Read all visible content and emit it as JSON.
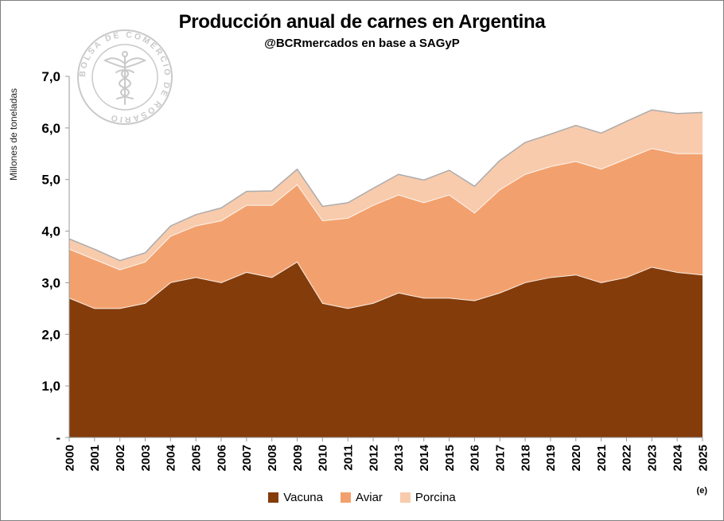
{
  "watermark": {
    "label": "BOLSA DE COMERCIO DE ROSARIO",
    "icon": "caduceus"
  },
  "chart_data": {
    "type": "area",
    "stacked": true,
    "title": "Producción anual de carnes en Argentina",
    "subtitle": "@BCRmercados en base a SAGyP",
    "ylabel": "Millones de toneladas",
    "xlabel": "",
    "ylim": [
      0,
      7
    ],
    "yticks": [
      "7,0",
      "6,0",
      "5,0",
      "4,0",
      "3,0",
      "2,0",
      "1,0",
      "-"
    ],
    "grid": false,
    "legend_position": "bottom",
    "note": "(e)",
    "x": [
      2000,
      2001,
      2002,
      2003,
      2004,
      2005,
      2006,
      2007,
      2008,
      2009,
      2010,
      2011,
      2012,
      2013,
      2014,
      2015,
      2016,
      2017,
      2018,
      2019,
      2020,
      2021,
      2022,
      2023,
      2024,
      2025
    ],
    "series": [
      {
        "name": "Vacuna",
        "color": "#843C0B",
        "values": [
          2.7,
          2.5,
          2.5,
          2.6,
          3.0,
          3.1,
          3.0,
          3.2,
          3.1,
          3.4,
          2.6,
          2.5,
          2.6,
          2.8,
          2.7,
          2.7,
          2.65,
          2.8,
          3.0,
          3.1,
          3.15,
          3.0,
          3.1,
          3.3,
          3.2,
          3.15
        ]
      },
      {
        "name": "Aviar",
        "color": "#F2A16E",
        "values": [
          0.95,
          0.95,
          0.75,
          0.8,
          0.9,
          1.0,
          1.2,
          1.3,
          1.4,
          1.5,
          1.6,
          1.75,
          1.9,
          1.9,
          1.85,
          2.0,
          1.7,
          2.0,
          2.1,
          2.15,
          2.2,
          2.2,
          2.3,
          2.3,
          2.3,
          2.35
        ]
      },
      {
        "name": "Porcina",
        "color": "#F8CBAD",
        "values": [
          0.2,
          0.2,
          0.18,
          0.18,
          0.2,
          0.22,
          0.25,
          0.27,
          0.28,
          0.3,
          0.28,
          0.3,
          0.33,
          0.4,
          0.44,
          0.48,
          0.52,
          0.57,
          0.62,
          0.63,
          0.7,
          0.7,
          0.73,
          0.75,
          0.78,
          0.8
        ]
      }
    ]
  }
}
